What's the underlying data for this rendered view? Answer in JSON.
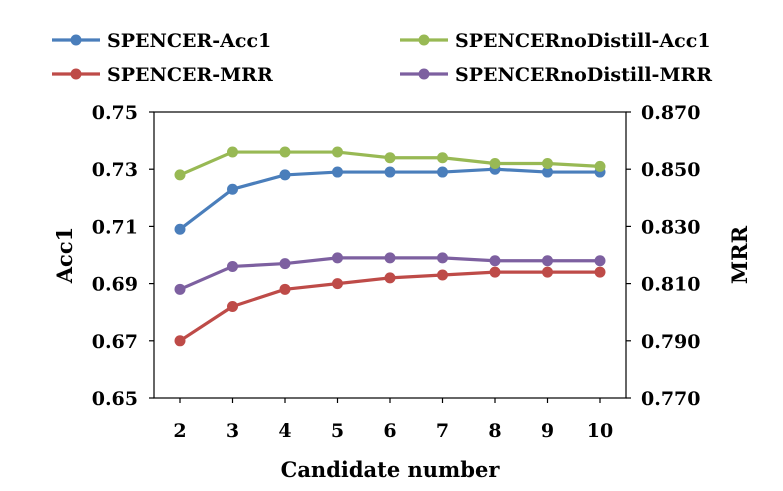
{
  "chart_data": {
    "type": "line",
    "x": [
      2,
      3,
      4,
      5,
      6,
      7,
      8,
      9,
      10
    ],
    "xlabel": "Candidate number",
    "ylabel": "Acc1",
    "y2label": "MRR",
    "ylim": [
      0.65,
      0.75
    ],
    "y2lim": [
      0.77,
      0.87
    ],
    "yticks": [
      "0.65",
      "0.67",
      "0.69",
      "0.71",
      "0.73",
      "0.75"
    ],
    "y2ticks": [
      "0.770",
      "0.790",
      "0.810",
      "0.830",
      "0.850",
      "0.870"
    ],
    "xticks": [
      "2",
      "3",
      "4",
      "5",
      "6",
      "7",
      "8",
      "9",
      "10"
    ],
    "legend_position": "top",
    "series": [
      {
        "name": "SPENCER-Acc1",
        "axis": "left",
        "color": "#4a7ebb",
        "values": [
          0.709,
          0.723,
          0.728,
          0.729,
          0.729,
          0.729,
          0.73,
          0.729,
          0.729
        ]
      },
      {
        "name": "SPENCERnoDistill-Acc1",
        "axis": "left",
        "color": "#98b954",
        "values": [
          0.728,
          0.736,
          0.736,
          0.736,
          0.734,
          0.734,
          0.732,
          0.732,
          0.731
        ]
      },
      {
        "name": "SPENCER-MRR",
        "axis": "right",
        "color": "#be4b48",
        "values": [
          0.79,
          0.802,
          0.808,
          0.81,
          0.812,
          0.813,
          0.814,
          0.814,
          0.814
        ]
      },
      {
        "name": "SPENCERnoDistill-MRR",
        "axis": "right",
        "color": "#7d60a0",
        "values": [
          0.808,
          0.816,
          0.817,
          0.819,
          0.819,
          0.819,
          0.818,
          0.818,
          0.818
        ]
      }
    ]
  }
}
